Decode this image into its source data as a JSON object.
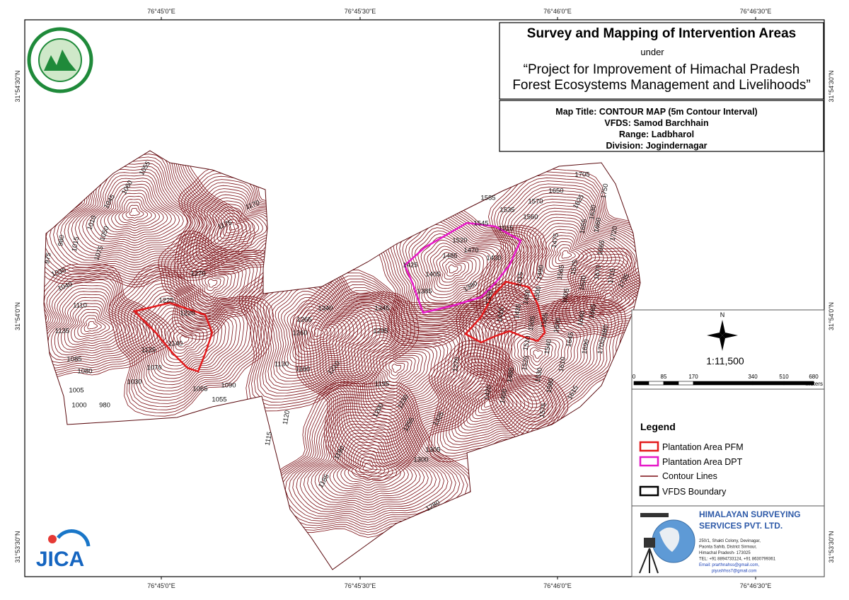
{
  "coordinates": {
    "top": [
      "76°45'0\"E",
      "76°45'30\"E",
      "76°46'0\"E",
      "76°46'30\"E"
    ],
    "bottom": [
      "76°45'0\"E",
      "76°45'30\"E",
      "76°46'0\"E",
      "76°46'30\"E"
    ],
    "left": [
      "31°54'30\"N",
      "31°54'0\"N",
      "31°53'30\"N"
    ],
    "right": [
      "31°54'30\"N",
      "31°54'0\"N",
      "31°53'30\"N"
    ]
  },
  "header": {
    "title": "Survey and Mapping of Intervention Areas",
    "under": "under",
    "project_line1": "“Project for Improvement of Himachal Pradesh",
    "project_line2": "Forest Ecosystems Management and Livelihoods”"
  },
  "map_info": [
    "Map Title: CONTOUR MAP (5m Contour Interval)",
    "VFDS: Samod Barchhain",
    "Range: Ladbharol",
    "Division: Jogindernagar"
  ],
  "north": "N",
  "scale": {
    "ratio": "1:11,500",
    "ticks": [
      "0",
      "85",
      "170",
      "340",
      "510",
      "680"
    ],
    "unit": "Meters"
  },
  "legend": {
    "title": "Legend",
    "items": [
      "Plantation Area PFM",
      "Plantation Area DPT",
      "Contour Lines",
      "VFDS Boundary"
    ]
  },
  "company": {
    "name_line1": "HIMALAYAN SURVEYING",
    "name_line2": "SERVICES PVT. LTD.",
    "address": [
      "250/1, Shakti Colony, Devinagar,",
      "Paonta Sahib, District Sirmour,",
      "Himachal Pradesh- 173025",
      "TEL: +91 8894733124, +91 8630799361",
      "Email: prarthnahss@gmail.com,",
      "piyushhss7@gmail.com"
    ]
  },
  "jica_logo": "JICA",
  "contour_labels": [
    "1055",
    "1060",
    "1045",
    "1010",
    "1050",
    "1015",
    "980",
    "975",
    "1075",
    "1035",
    "1040",
    "1110",
    "1135",
    "1085",
    "1080",
    "1005",
    "1000",
    "980",
    "1030",
    "1070",
    "1125",
    "1140",
    "1220",
    "1225",
    "1065",
    "1090",
    "1055",
    "1170",
    "1175",
    "1270",
    "1265",
    "1260",
    "1340",
    "1345",
    "1295",
    "1130",
    "1160",
    "1210",
    "1195",
    "1120",
    "1115",
    "1200",
    "1230",
    "1255",
    "1325",
    "1305",
    "1300",
    "1190",
    "1185",
    "1280",
    "1270",
    "1425",
    "1405",
    "1385",
    "1485",
    "1470",
    "1520",
    "1545",
    "1515",
    "1535",
    "1585",
    "1560",
    "1570",
    "1650",
    "1705",
    "1750",
    "1625",
    "1630",
    "1655",
    "1660",
    "1720",
    "1665",
    "1430",
    "1380",
    "1335",
    "1415",
    "1490",
    "1475",
    "1450",
    "1435",
    "1410",
    "1500",
    "1565",
    "1575",
    "1605",
    "1620",
    "1670",
    "1715",
    "1735",
    "1505",
    "1555",
    "1600",
    "1640",
    "1665",
    "1680",
    "1510",
    "1540",
    "1645",
    "1690",
    "1700",
    "1525",
    "1610",
    "1530",
    "1580",
    "1615",
    "1575",
    "1480",
    "1400",
    "1420"
  ]
}
